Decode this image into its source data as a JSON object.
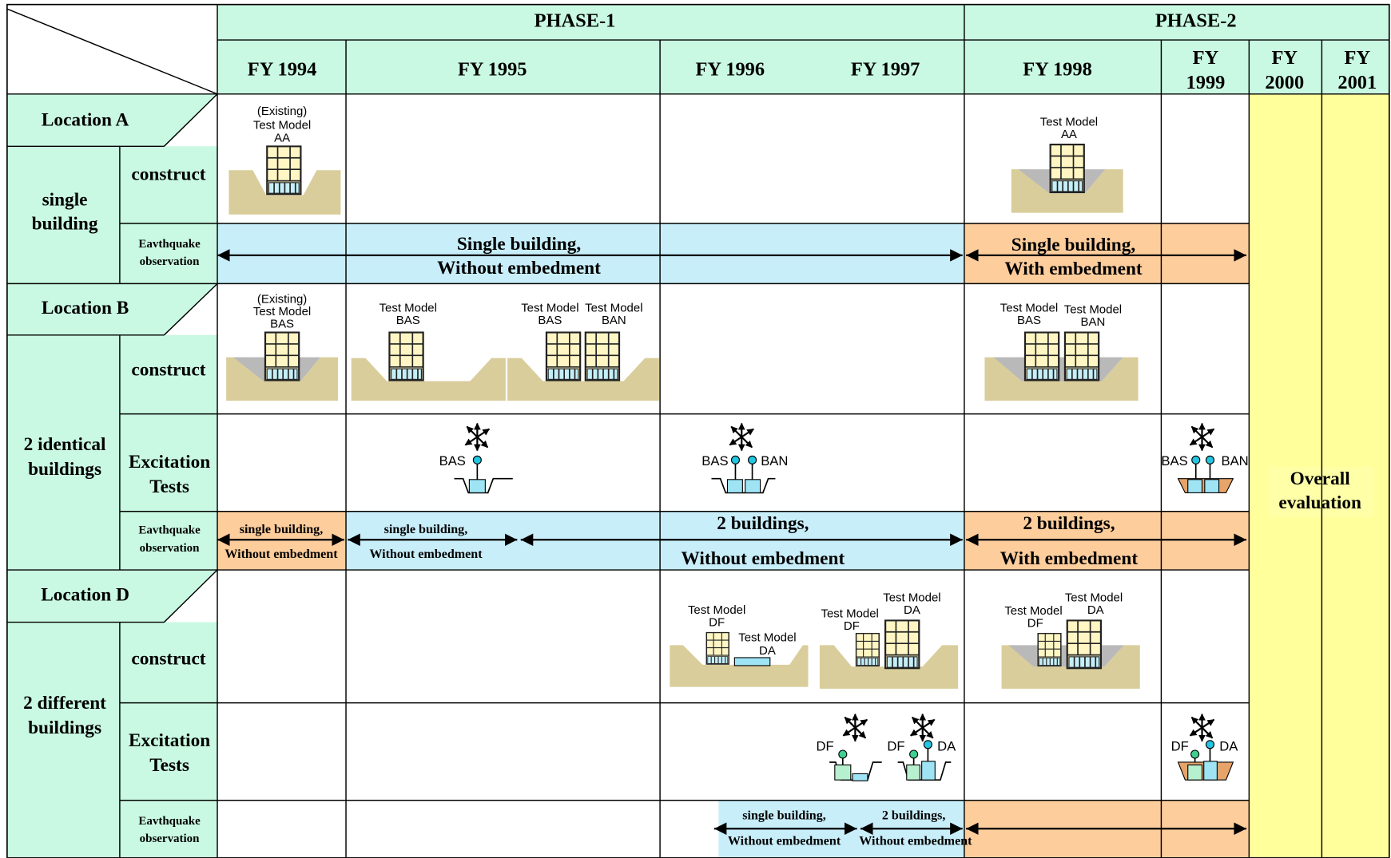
{
  "header": {
    "phases": [
      "PHASE-1",
      "PHASE-2"
    ],
    "years": [
      [
        "FY 1994"
      ],
      [
        "FY 1995"
      ],
      [
        "FY 1996"
      ],
      [
        "FY 1997"
      ],
      [
        "FY 1998"
      ],
      [
        "FY",
        "1999"
      ],
      [
        "FY",
        "2000"
      ],
      [
        "FY",
        "2001"
      ]
    ]
  },
  "locations": [
    {
      "name": "Location A",
      "group": [
        "single",
        "building"
      ],
      "row_labels": {
        "construct": "construct",
        "observation": [
          "Eavthquake",
          "observation"
        ]
      },
      "models": [
        [
          "(Existing)",
          "Test Model",
          "AA"
        ],
        [
          "Test Model",
          "AA"
        ]
      ],
      "observation_bars": [
        [
          "Single building,",
          "Without embedment"
        ],
        [
          "Single building,",
          "With embedment"
        ]
      ]
    },
    {
      "name": "Location B",
      "group": [
        "2 identical",
        "buildings"
      ],
      "row_labels": {
        "construct": "construct",
        "excitation": [
          "Excitation",
          "Tests"
        ],
        "observation": [
          "Eavthquake",
          "observation"
        ]
      },
      "models": [
        [
          "(Existing)",
          "Test Model",
          "BAS"
        ],
        [
          "Test Model",
          "BAS"
        ],
        [
          "Test Model",
          "BAS"
        ],
        [
          "Test Model",
          "BAN"
        ],
        [
          "Test Model",
          "BAS"
        ],
        [
          "Test Model",
          "BAN"
        ]
      ],
      "excitation_labels": [
        [
          "BAS"
        ],
        [
          "BAS",
          "BAN"
        ],
        [
          "BAS",
          "BAN"
        ]
      ],
      "observation_bars": [
        [
          "single building,",
          "Without embedment"
        ],
        [
          "single building,",
          "Without embedment"
        ],
        [
          "2 buildings,",
          "Without embedment"
        ],
        [
          "2 buildings,",
          "With embedment"
        ]
      ]
    },
    {
      "name": "Location D",
      "group": [
        "2 different",
        "buildings"
      ],
      "row_labels": {
        "construct": "construct",
        "excitation": [
          "Excitation",
          "Tests"
        ],
        "observation": [
          "Eavthquake",
          "observation"
        ]
      },
      "models": [
        [
          "Test Model",
          "DF"
        ],
        [
          "Test Model",
          "DA"
        ],
        [
          "Test Model",
          "DF"
        ],
        [
          "Test Model",
          "DA"
        ],
        [
          "Test Model",
          "DF"
        ],
        [
          "Test Model",
          "DA"
        ]
      ],
      "excitation_labels": [
        [
          "DF"
        ],
        [
          "DF",
          "DA"
        ],
        [
          "DF",
          "DA"
        ]
      ],
      "observation_bars": [
        [
          "single building,",
          "Without embedment"
        ],
        [
          "2 buildings,",
          "Without embedment"
        ]
      ]
    }
  ],
  "overall": [
    "Overall",
    "evaluation"
  ]
}
